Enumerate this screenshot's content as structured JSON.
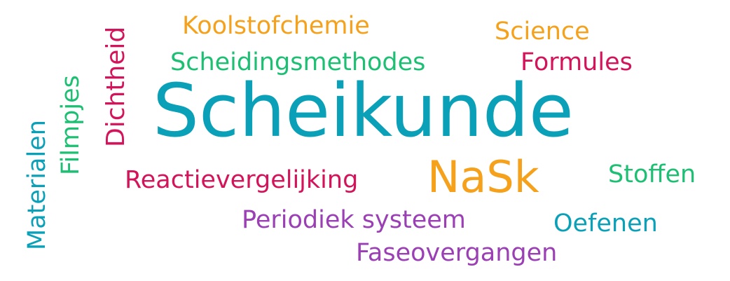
{
  "words": {
    "scheikunde": {
      "text": "Scheikunde",
      "color": "#0aa0b8"
    },
    "nask": {
      "text": "NaSk",
      "color": "#f5a11c"
    },
    "koolstofchemie": {
      "text": "Koolstofchemie",
      "color": "#f5a11c"
    },
    "science": {
      "text": "Science",
      "color": "#f5a11c"
    },
    "scheiding": {
      "text": "Scheidingsmethodes",
      "color": "#1dbf73"
    },
    "formules": {
      "text": "Formules",
      "color": "#d4145a"
    },
    "reactie": {
      "text": "Reactievergelijking",
      "color": "#d4145a"
    },
    "stoffen": {
      "text": "Stoffen",
      "color": "#1dbf73"
    },
    "periodiek": {
      "text": "Periodiek systeem",
      "color": "#9b3fb5"
    },
    "oefenen": {
      "text": "Oefenen",
      "color": "#0aa0b8"
    },
    "fase": {
      "text": "Faseovergangen",
      "color": "#9b3fb5"
    },
    "dichtheid": {
      "text": "Dichtheid",
      "color": "#d4145a"
    },
    "filmpjes": {
      "text": "Filmpjes",
      "color": "#1dbf73"
    },
    "materialen": {
      "text": "Materialen",
      "color": "#0aa0b8"
    }
  }
}
